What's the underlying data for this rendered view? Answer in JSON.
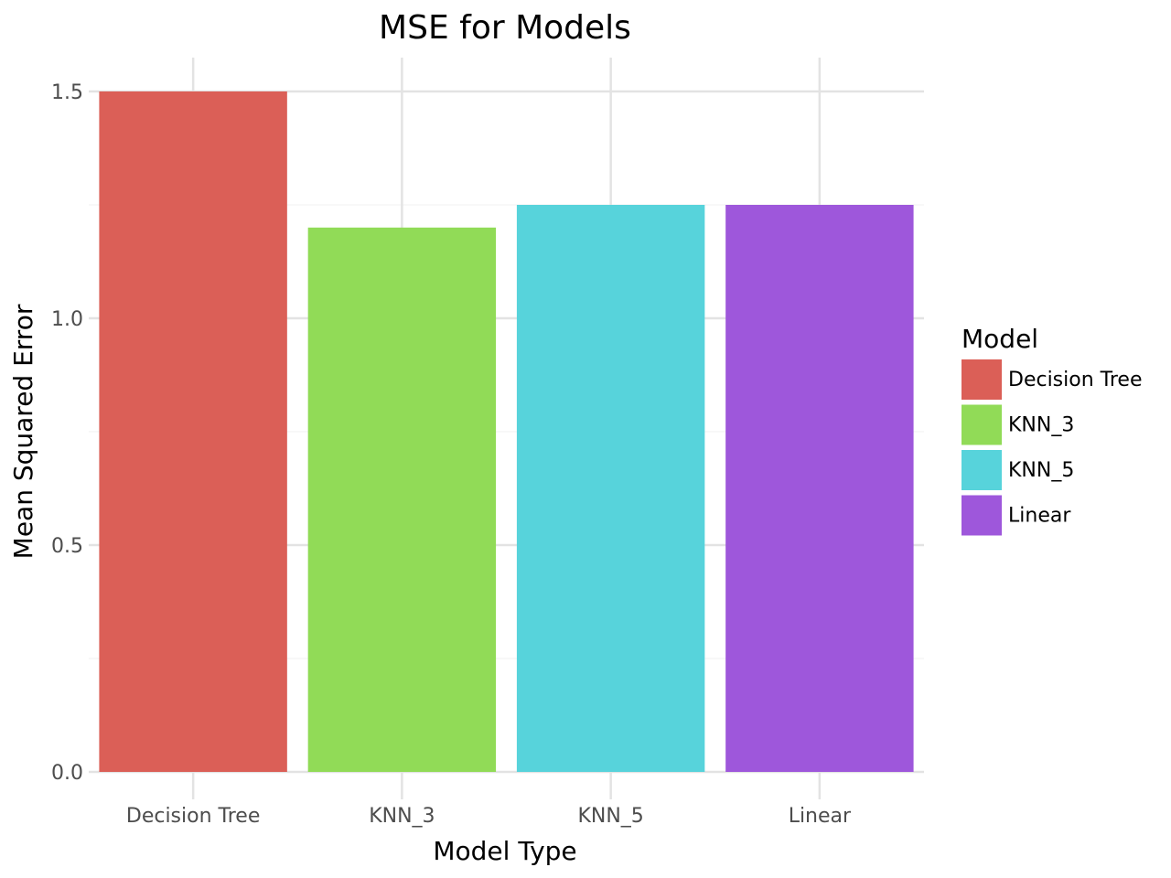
{
  "chart_data": {
    "type": "bar",
    "title": "MSE for Models",
    "xlabel": "Model Type",
    "ylabel": "Mean Squared Error",
    "categories": [
      "Decision Tree",
      "KNN_3",
      "KNN_5",
      "Linear"
    ],
    "values": [
      1.5,
      1.2,
      1.25,
      1.25
    ],
    "colors": [
      "#db5f57",
      "#91db57",
      "#57d3db",
      "#9e57db"
    ],
    "ylim": [
      0,
      1.5
    ],
    "yticks": [
      0.0,
      0.5,
      1.0,
      1.5
    ],
    "ytick_labels": [
      "0.0",
      "0.5",
      "1.0",
      "1.5"
    ],
    "grid": true,
    "legend": {
      "title": "Model",
      "position": "right",
      "entries": [
        "Decision Tree",
        "KNN_3",
        "KNN_5",
        "Linear"
      ]
    }
  }
}
